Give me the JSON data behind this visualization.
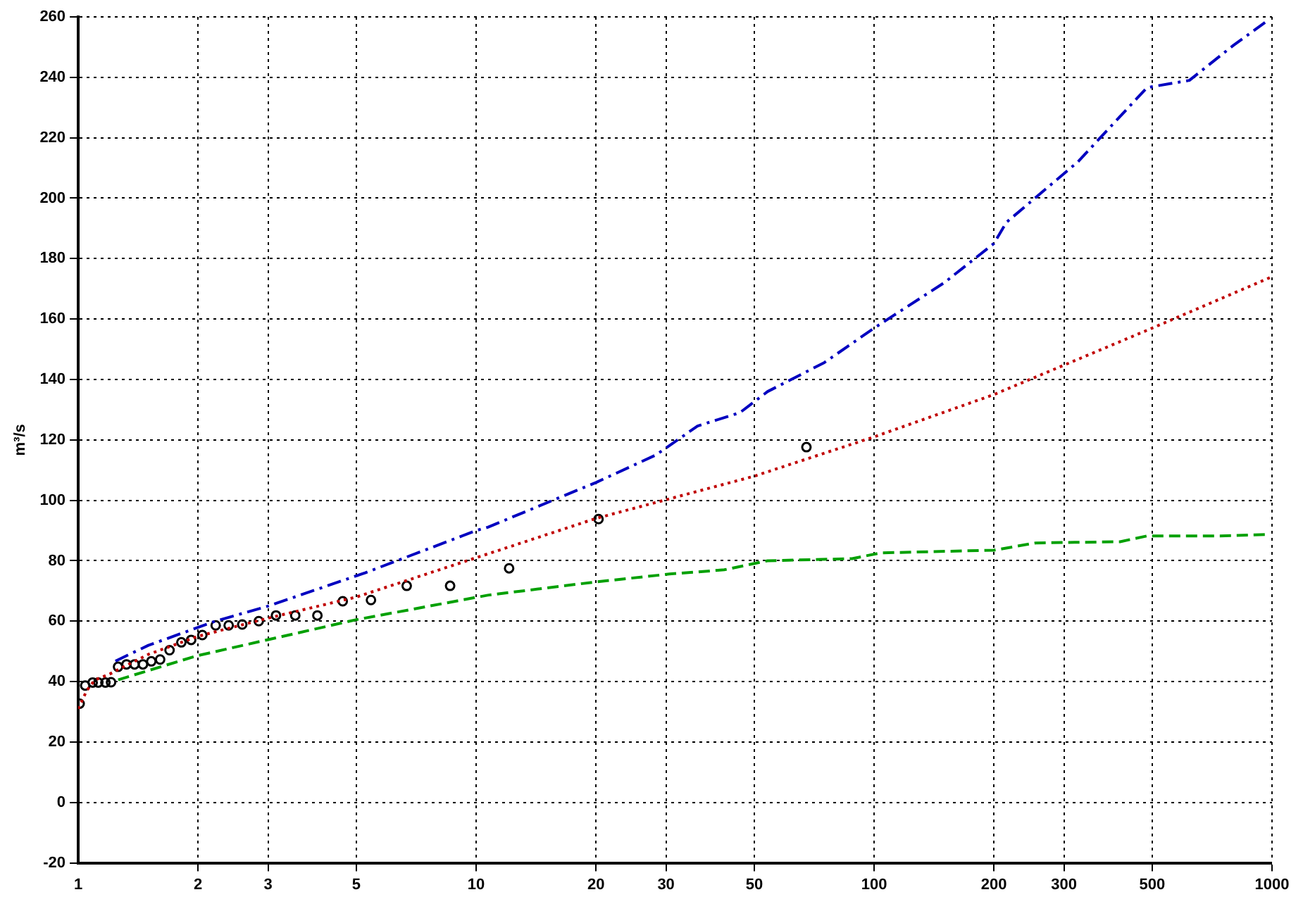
{
  "chart_data": {
    "type": "line",
    "ylabel": "m³/s",
    "log": "x",
    "grid": true,
    "xlim": [
      1,
      1000
    ],
    "xticks": [
      1,
      2,
      3,
      5,
      10,
      20,
      30,
      50,
      100,
      200,
      300,
      500,
      1000
    ],
    "ylim": [
      -20,
      260
    ],
    "yticks": [
      -20,
      0,
      20,
      40,
      60,
      80,
      100,
      120,
      140,
      160,
      180,
      200,
      220,
      240,
      260
    ],
    "series": [
      {
        "type": "line",
        "color": "#0000c0",
        "line_style": "dashed",
        "marker": "none",
        "x": [
          1.24,
          1.5,
          2.21,
          3,
          5.26,
          10,
          10.7,
          20,
          28.3,
          36,
          46,
          54,
          75,
          100,
          150,
          200,
          215,
          325,
          485,
          620,
          800,
          980
        ],
        "values": [
          46.8,
          52,
          60,
          65,
          76,
          90,
          91.1,
          105.9,
          115,
          124.6,
          129,
          136,
          145.6,
          157,
          172,
          185,
          192,
          212,
          236.6,
          239,
          250.6,
          259
        ]
      },
      {
        "type": "line",
        "color": "#c00000",
        "line_style": "dotted",
        "marker": "none",
        "x": [
          1,
          1.05,
          1.1,
          1.2,
          1.26,
          1.5,
          2,
          3,
          5,
          10,
          20,
          50,
          100,
          200,
          500,
          1000
        ],
        "values": [
          31,
          37,
          40.5,
          42.5,
          44,
          49,
          55,
          61,
          68,
          81,
          94,
          108,
          121,
          135,
          157,
          174
        ]
      },
      {
        "type": "line",
        "color": "#00a000",
        "line_style": "dashed",
        "marker": "none",
        "x": [
          1.26,
          1.98,
          5,
          10.7,
          20,
          30.6,
          42,
          54,
          88,
          104,
          200,
          255,
          415,
          485,
          740,
          980
        ],
        "values": [
          40.6,
          48.5,
          60.5,
          68.6,
          73,
          75.6,
          77,
          80,
          80.7,
          82.6,
          83.5,
          85.9,
          86.3,
          88.2,
          88.2,
          88.7
        ]
      },
      {
        "type": "scatter",
        "color": "#000000",
        "marker": "circle",
        "x": [
          1.008,
          1.041,
          1.087,
          1.123,
          1.17,
          1.209,
          1.259,
          1.322,
          1.385,
          1.454,
          1.526,
          1.606,
          1.696,
          1.816,
          1.922,
          2.05,
          2.215,
          2.388,
          2.583,
          2.842,
          3.14,
          3.51,
          3.99,
          4.62,
          5.44,
          6.69,
          8.6,
          12.1,
          20.3,
          67.6
        ],
        "values": [
          32.7,
          38.7,
          39.7,
          39.7,
          39.7,
          39.8,
          44.9,
          45.7,
          45.7,
          45.7,
          46.7,
          47.3,
          50.4,
          53,
          53.8,
          55.4,
          58.6,
          58.6,
          58.9,
          60,
          61.9,
          61.9,
          61.9,
          66.6,
          67,
          71.7,
          71.7,
          77.5,
          93.8,
          117.6
        ]
      }
    ]
  }
}
